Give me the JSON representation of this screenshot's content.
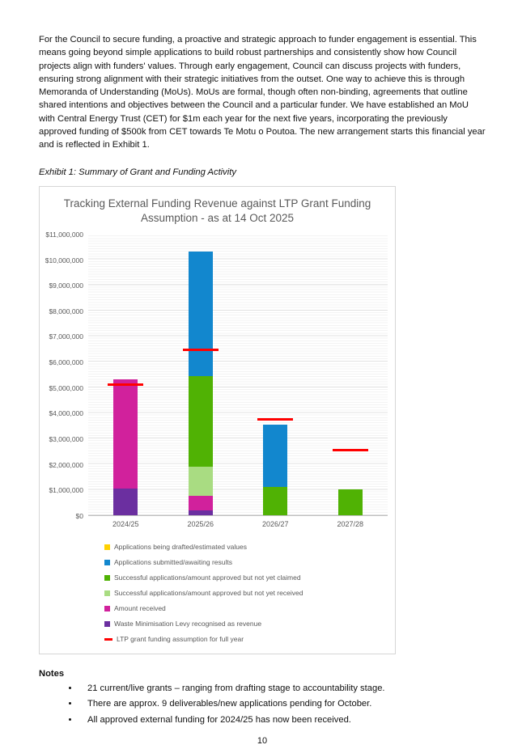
{
  "intro": {
    "text": "For the Council to secure funding, a proactive and strategic approach to funder engagement is essential. This means going beyond simple applications to build robust partnerships and consistently show how Council projects align with funders' values.  Through early engagement, Council can discuss projects with funders, ensuring strong alignment with their strategic initiatives from the outset.  One way to achieve this is through Memoranda of Understanding (MoUs).  MoUs are formal, though often non-binding, agreements that outline shared intentions and objectives between the Council and a particular funder.  We have established an MoU with Central Energy Trust (CET) for $1m each year for the next five years, incorporating the previously approved funding of $500k from CET towards Te Motu o Poutoa.  The new arrangement starts this financial year and is reflected in Exhibit 1."
  },
  "exhibit_caption": "Exhibit 1: Summary of Grant and Funding Activity",
  "chart_data": {
    "type": "bar",
    "stacked": true,
    "title": "Tracking External Funding Revenue against LTP Grant Funding Assumption - as at 14 Oct 2025",
    "categories": [
      "2024/25",
      "2025/26",
      "2026/27",
      "2027/28"
    ],
    "series": [
      {
        "name": "Applications being drafted/estimated values",
        "color": "#FFD100",
        "values": [
          0,
          0,
          0,
          0
        ]
      },
      {
        "name": "Applications submitted/awaiting results",
        "color": "#1287CE",
        "values": [
          0,
          4850000,
          2450000,
          0
        ]
      },
      {
        "name": "Successful applications/amount approved but not yet claimed",
        "color": "#50B204",
        "values": [
          0,
          3550000,
          1100000,
          1000000
        ]
      },
      {
        "name": "Successful applications/amount approved but not yet received",
        "color": "#A9DC82",
        "values": [
          0,
          1150000,
          0,
          0
        ]
      },
      {
        "name": "Amount received",
        "color": "#D1219C",
        "values": [
          4250000,
          550000,
          0,
          0
        ]
      },
      {
        "name": "Waste Minimisation Levy recognised as revenue",
        "color": "#6B2FA0",
        "values": [
          1050000,
          200000,
          0,
          0
        ]
      }
    ],
    "line_series": {
      "name": "LTP grant funding assumption for full year",
      "color": "#FF0000",
      "values": [
        5100000,
        6450000,
        3750000,
        2550000
      ]
    },
    "totals": [
      5300000,
      10300000,
      3550000,
      1000000
    ],
    "y_ticks": [
      "$0",
      "$1,000,000",
      "$2,000,000",
      "$3,000,000",
      "$4,000,000",
      "$5,000,000",
      "$6,000,000",
      "$7,000,000",
      "$8,000,000",
      "$9,000,000",
      "$10,000,000",
      "$11,000,000"
    ],
    "ylim": [
      0,
      11000000
    ],
    "ylabel": "",
    "xlabel": "",
    "grid": "horizontal major every $1,000,000 with fine minor lines",
    "legend_position": "bottom-left"
  },
  "notes": {
    "heading": "Notes",
    "items": [
      "21 current/live grants – ranging from drafting stage to accountability stage.",
      "There are approx. 9 deliverables/new applications pending for October.",
      "All approved external funding for 2024/25 has now been received."
    ]
  },
  "page": {
    "number": "10"
  }
}
